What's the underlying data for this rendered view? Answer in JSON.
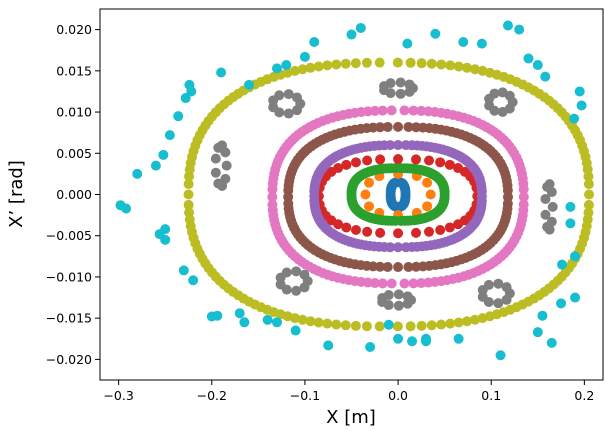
{
  "chart_data": {
    "type": "scatter",
    "title": "",
    "xlabel": "X [m]",
    "ylabel": "X’ [rad]",
    "xlim": [
      -0.32,
      0.22
    ],
    "ylim": [
      -0.0225,
      0.0225
    ],
    "xticks": [
      -0.3,
      -0.2,
      -0.1,
      0.0,
      0.1,
      0.2
    ],
    "xtick_labels": [
      "−0.3",
      "−0.2",
      "−0.1",
      "0.0",
      "0.1",
      "0.2"
    ],
    "yticks": [
      -0.02,
      -0.015,
      -0.01,
      -0.005,
      0.0,
      0.005,
      0.01,
      0.015,
      0.02
    ],
    "ytick_labels": [
      "−0.020",
      "−0.015",
      "−0.010",
      "−0.005",
      "0.000",
      "0.005",
      "0.010",
      "0.015",
      "0.020"
    ],
    "grid": false,
    "legend": "none",
    "series": [
      {
        "color": "#1f77b4",
        "kind": "ellipse",
        "cx": 0.0,
        "cy": 0.0,
        "rx": 0.008,
        "ry": 0.0015,
        "n": 40
      },
      {
        "color": "#ff7f0e",
        "kind": "ellipse",
        "cx": 0.0,
        "cy": 0.0,
        "rx": 0.035,
        "ry": 0.0025,
        "n": 12
      },
      {
        "color": "#2ca02c",
        "kind": "ellipse",
        "cx": 0.0,
        "cy": 0.0,
        "rx": 0.05,
        "ry": 0.0032,
        "n": 110
      },
      {
        "color": "#d62728",
        "kind": "ellipse",
        "cx": 0.0,
        "cy": -0.0002,
        "rx": 0.085,
        "ry": 0.0045,
        "n": 40
      },
      {
        "color": "#9467bd",
        "kind": "ellipse",
        "cx": 0.0,
        "cy": -0.0002,
        "rx": 0.09,
        "ry": 0.0062,
        "n": 120
      },
      {
        "color": "#8c564b",
        "kind": "ellipse",
        "cx": 0.0,
        "cy": -0.0003,
        "rx": 0.118,
        "ry": 0.0085,
        "n": 120
      },
      {
        "color": "#e377c2",
        "kind": "ellipse",
        "cx": 0.0,
        "cy": -0.0003,
        "rx": 0.135,
        "ry": 0.0105,
        "n": 130
      },
      {
        "color": "#7f7f7f",
        "kind": "islands",
        "n_per": 9,
        "islands": [
          {
            "cx": 0.0,
            "cy": 0.0129,
            "dx": 0.016,
            "dy": 0.0007
          },
          {
            "cx": 0.11,
            "cy": 0.0112,
            "dx": 0.013,
            "dy": 0.0012
          },
          {
            "cx": 0.162,
            "cy": -0.0015,
            "dx": 0.004,
            "dy": 0.0028
          },
          {
            "cx": 0.105,
            "cy": -0.012,
            "dx": 0.015,
            "dy": 0.0012
          },
          {
            "cx": -0.002,
            "cy": -0.0128,
            "dx": 0.016,
            "dy": 0.0007
          },
          {
            "cx": -0.112,
            "cy": -0.0105,
            "dx": 0.015,
            "dy": 0.0012
          },
          {
            "cx": -0.19,
            "cy": 0.0035,
            "dx": 0.006,
            "dy": 0.0025
          },
          {
            "cx": -0.12,
            "cy": 0.011,
            "dx": 0.015,
            "dy": 0.0012
          }
        ]
      },
      {
        "color": "#bcbd22",
        "kind": "ellipse",
        "cx": -0.01,
        "cy": 0.0,
        "rx": 0.215,
        "ry": 0.016,
        "n": 150
      },
      {
        "color": "#17becf",
        "kind": "points",
        "points": [
          [
            -0.298,
            -0.0013
          ],
          [
            -0.292,
            -0.0017
          ],
          [
            -0.28,
            0.0025
          ],
          [
            -0.256,
            -0.0048
          ],
          [
            -0.252,
            0.0048
          ],
          [
            -0.25,
            -0.0042
          ],
          [
            -0.245,
            0.0072
          ],
          [
            -0.236,
            0.0095
          ],
          [
            -0.228,
            0.0117
          ],
          [
            -0.222,
            0.0125
          ],
          [
            -0.224,
            0.0133
          ],
          [
            -0.2,
            -0.0148
          ],
          [
            -0.194,
            -0.0147
          ],
          [
            -0.23,
            -0.0092
          ],
          [
            -0.22,
            -0.0104
          ],
          [
            -0.19,
            0.0148
          ],
          [
            -0.17,
            -0.0144
          ],
          [
            -0.165,
            -0.0155
          ],
          [
            -0.14,
            -0.0152
          ],
          [
            -0.13,
            -0.0155
          ],
          [
            -0.11,
            -0.0165
          ],
          [
            -0.075,
            -0.0183
          ],
          [
            -0.03,
            -0.0185
          ],
          [
            -0.01,
            -0.0158
          ],
          [
            0.0,
            -0.0175
          ],
          [
            0.015,
            -0.0178
          ],
          [
            0.03,
            -0.0175
          ],
          [
            0.065,
            -0.0175
          ],
          [
            0.11,
            -0.0195
          ],
          [
            0.15,
            -0.0167
          ],
          [
            0.155,
            -0.0147
          ],
          [
            0.175,
            -0.0132
          ],
          [
            0.176,
            -0.0085
          ],
          [
            0.189,
            0.0092
          ],
          [
            0.195,
            0.0125
          ],
          [
            0.197,
            0.0108
          ],
          [
            0.158,
            0.0143
          ],
          [
            0.15,
            0.0157
          ],
          [
            0.14,
            0.0165
          ],
          [
            0.118,
            0.0205
          ],
          [
            0.13,
            0.02
          ],
          [
            0.09,
            0.0183
          ],
          [
            0.07,
            0.0185
          ],
          [
            0.04,
            0.0195
          ],
          [
            0.01,
            0.0183
          ],
          [
            -0.04,
            0.0202
          ],
          [
            -0.05,
            0.0194
          ],
          [
            -0.09,
            0.0185
          ],
          [
            -0.1,
            0.0167
          ],
          [
            -0.12,
            0.0157
          ],
          [
            -0.13,
            0.0153
          ],
          [
            -0.16,
            0.0133
          ],
          [
            -0.25,
            -0.0055
          ],
          [
            -0.26,
            0.0035
          ],
          [
            0.185,
            -0.0035
          ],
          [
            0.185,
            -0.0015
          ],
          [
            0.19,
            -0.0075
          ],
          [
            0.19,
            -0.0125
          ],
          [
            0.165,
            -0.018
          ],
          [
            0.03,
            -0.0178
          ]
        ]
      }
    ]
  }
}
